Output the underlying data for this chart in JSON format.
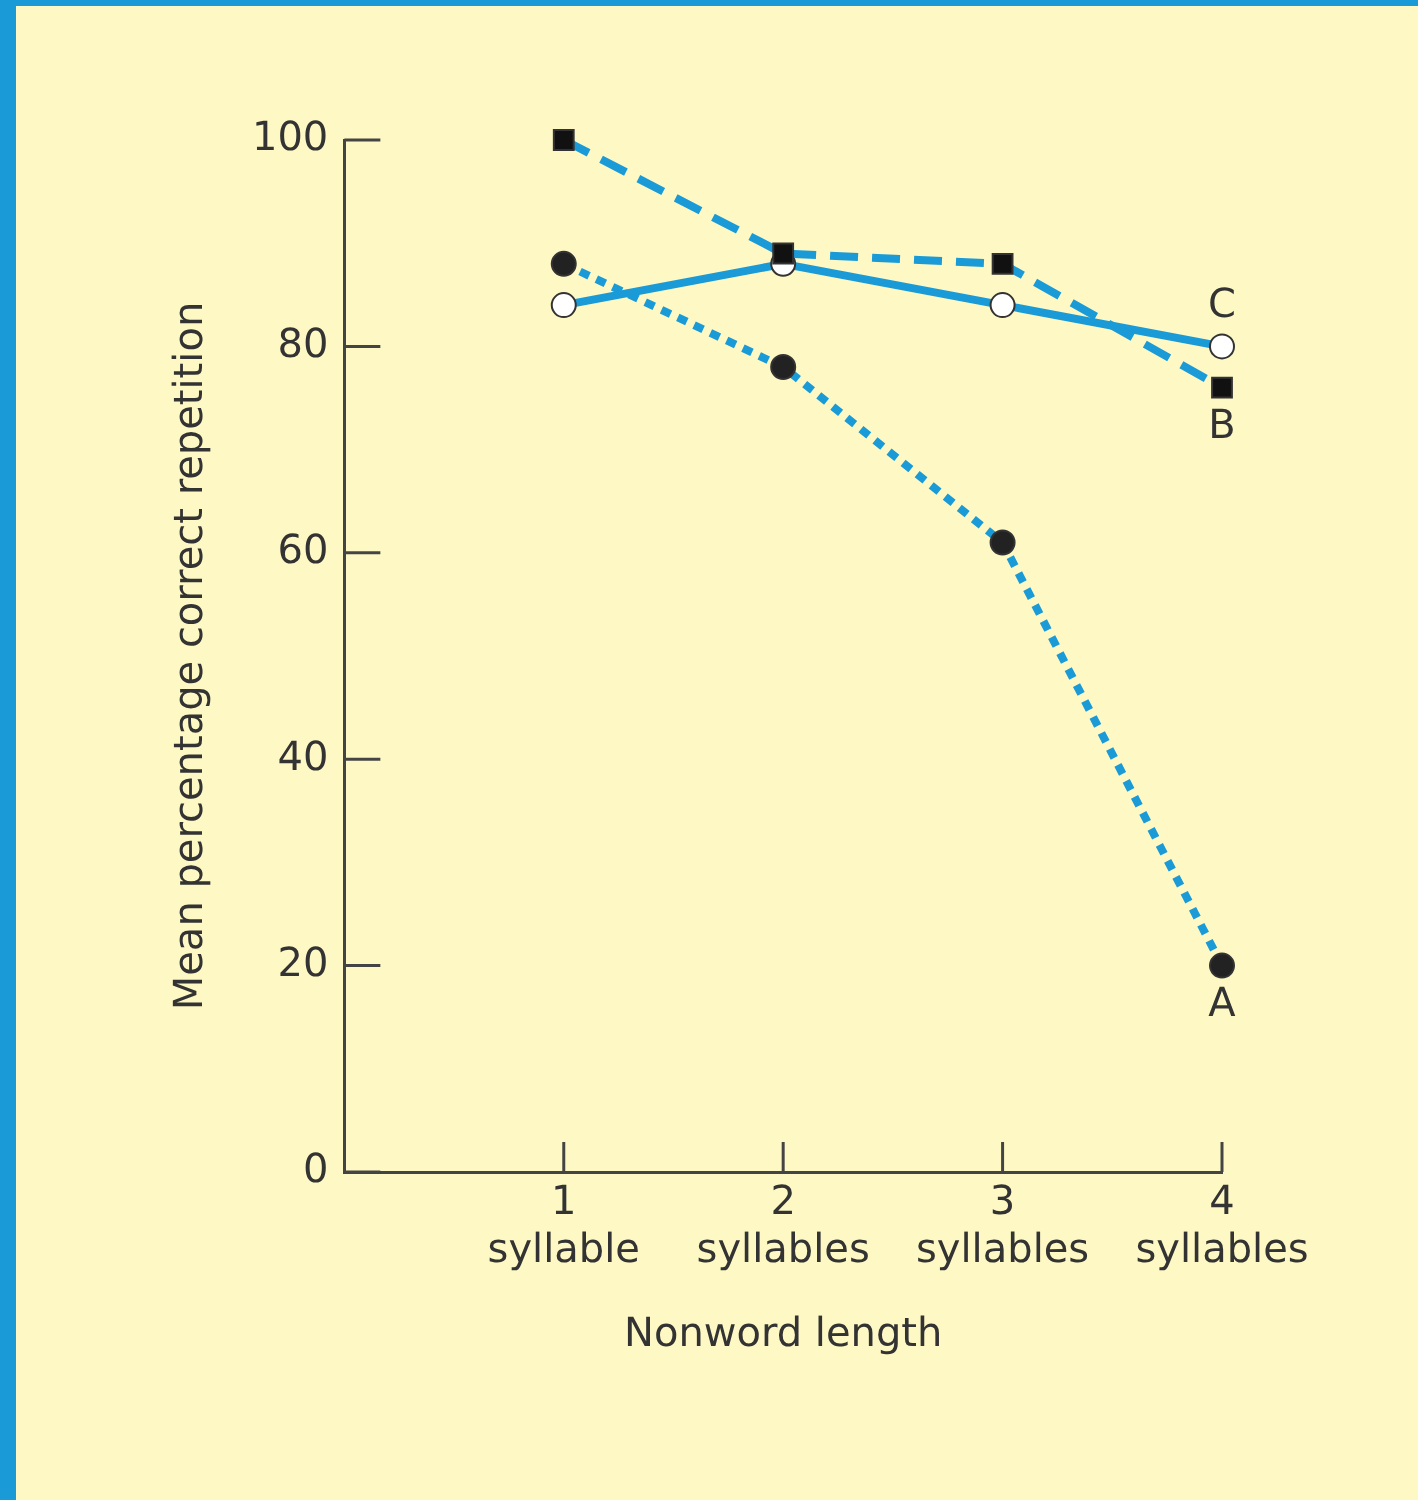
{
  "chart_data": {
    "type": "line",
    "xlabel": "Nonword length",
    "ylabel": "Mean percentage correct repetition",
    "x": [
      1,
      2,
      3,
      4
    ],
    "xlim": [
      0,
      4
    ],
    "xticks": [
      {
        "value": 1,
        "label": "1\nsyllable"
      },
      {
        "value": 2,
        "label": "2\nsyllables"
      },
      {
        "value": 3,
        "label": "3\nsyllables"
      },
      {
        "value": 4,
        "label": "4\nsyllables"
      }
    ],
    "ylim": [
      0,
      100
    ],
    "yticks": [
      0,
      20,
      40,
      60,
      80,
      100
    ],
    "grid": false,
    "legend": false,
    "series": [
      {
        "name": "A",
        "color": "#1a9bd7",
        "colors": [
          "#222222",
          "#222222",
          "#222222",
          "#222222"
        ],
        "marker": "circle",
        "line_style": "dotted",
        "values": [
          88,
          78,
          61,
          20
        ]
      },
      {
        "name": "B",
        "color": "#1a9bd7",
        "colors": [
          "#111111",
          "#111111",
          "#111111",
          "#111111"
        ],
        "marker": "square",
        "line_style": "dashed",
        "values": [
          100,
          89,
          88,
          76
        ]
      },
      {
        "name": "C",
        "color": "#1a9bd7",
        "colors": [
          "#ffffff",
          "#ffffff",
          "#ffffff",
          "#ffffff"
        ],
        "marker": "circle",
        "line_style": "solid",
        "values": [
          84,
          88,
          84,
          80
        ]
      }
    ]
  }
}
